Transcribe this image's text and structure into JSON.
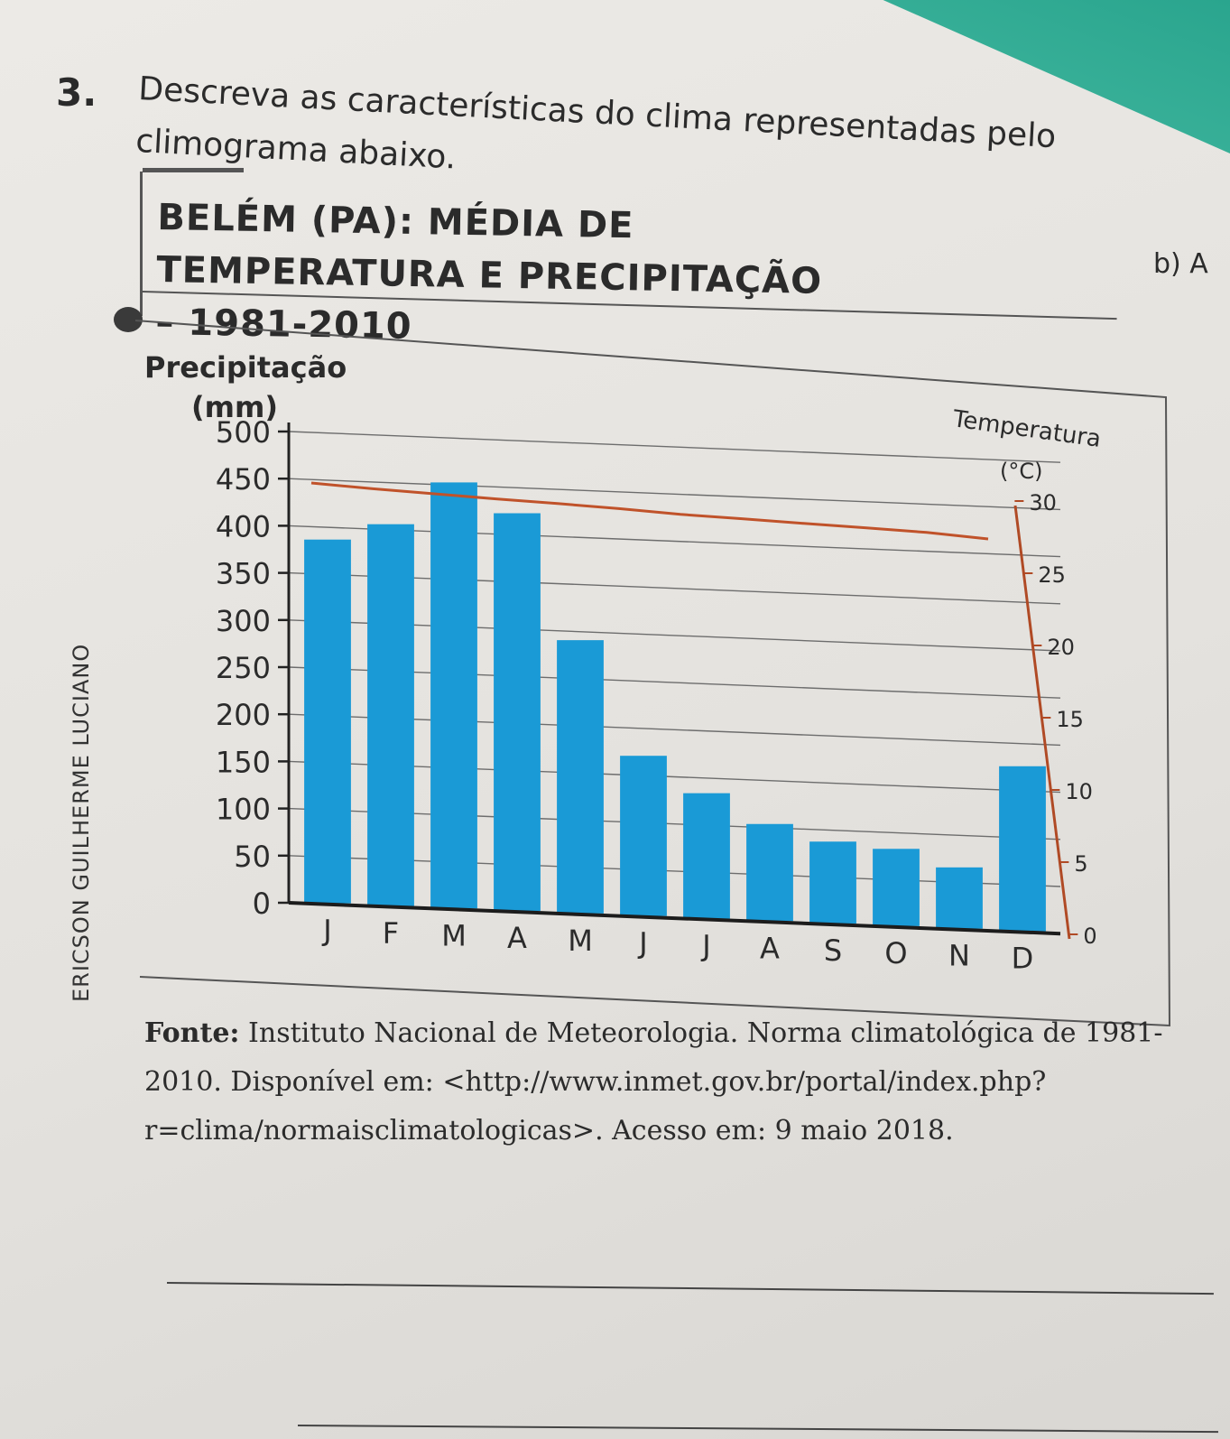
{
  "question": {
    "number": "3.",
    "text": "Descreva as características do clima representadas pelo climograma abaixo."
  },
  "side_fragment": "b) A",
  "chart_data": {
    "type": "bar",
    "title": "BELÉM (PA): MÉDIA DE TEMPERATURA E PRECIPITAÇÃO – 1981-2010",
    "ylabel": "Precipitação (mm)",
    "y2label": "Temperatura (°C)",
    "categories": [
      "J",
      "F",
      "M",
      "A",
      "M",
      "J",
      "J",
      "A",
      "S",
      "O",
      "N",
      "D"
    ],
    "series": [
      {
        "name": "Precipitação",
        "type": "bar",
        "axis": "left",
        "values": [
          386,
          405,
          452,
          422,
          290,
          170,
          133,
          103,
          87,
          82,
          65,
          175
        ]
      },
      {
        "name": "Temperatura",
        "type": "line",
        "axis": "right",
        "values": [
          26.5,
          26.4,
          26.5,
          26.6,
          26.8,
          26.9,
          26.8,
          27.1,
          27.3,
          27.6,
          27.8,
          27.5
        ]
      }
    ],
    "ylim": [
      0,
      500
    ],
    "yticks": [
      "0",
      "50",
      "100",
      "150",
      "200",
      "250",
      "300",
      "350",
      "400",
      "450",
      "500"
    ],
    "y2lim": [
      0,
      30
    ],
    "y2ticks": [
      "0",
      "5",
      "10",
      "15",
      "20",
      "25",
      "30"
    ],
    "bar_color": "#1a9ad6",
    "line_color": "#c0522a",
    "grid": true
  },
  "credit": "ERICSON GUILHERME LUCIANO",
  "source": {
    "label": "Fonte:",
    "text": "Instituto Nacional de Meteorologia. Norma climatológica de 1981-2010. Disponível em: <http://www.inmet.gov.br/portal/index.php?r=clima/normaisclimatologicas>. Acesso em: 9 maio 2018."
  }
}
